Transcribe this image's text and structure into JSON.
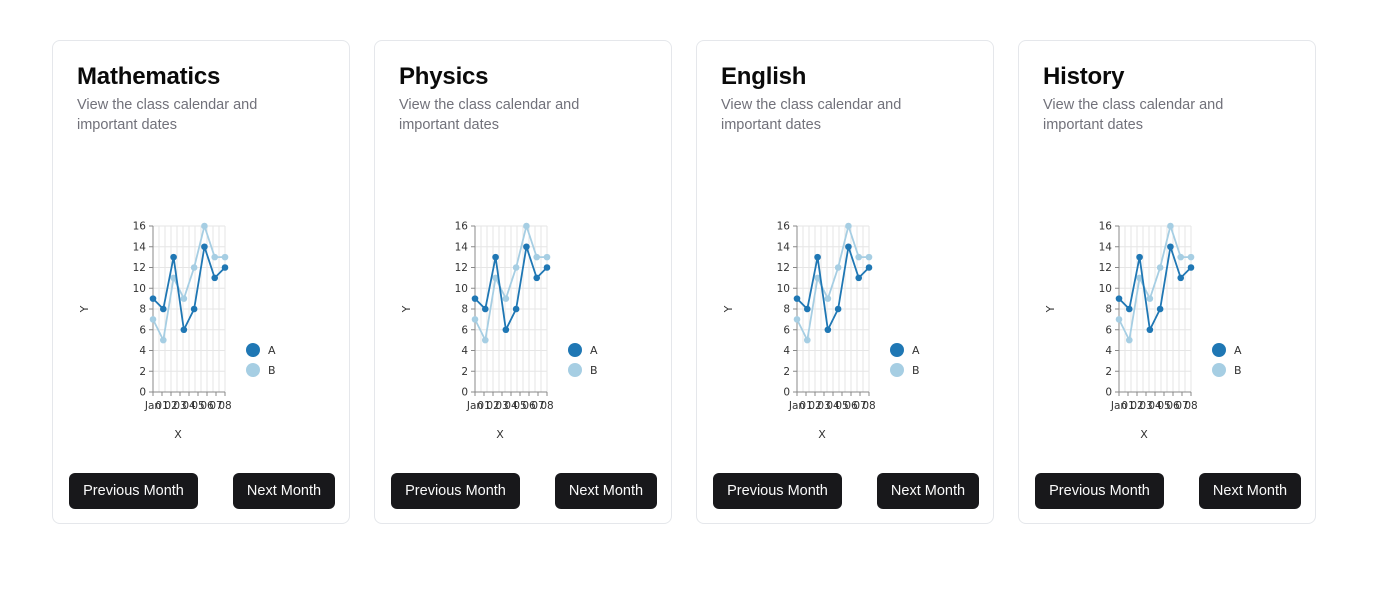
{
  "buttons": {
    "previous": "Previous Month",
    "next": "Next Month"
  },
  "cards": [
    {
      "title": "Mathematics",
      "description": "View the class calendar and important dates"
    },
    {
      "title": "Physics",
      "description": "View the class calendar and important dates"
    },
    {
      "title": "English",
      "description": "View the class calendar and important dates"
    },
    {
      "title": "History",
      "description": "View the class calendar and important dates"
    }
  ],
  "chart_data": {
    "type": "line",
    "xlabel": "X",
    "ylabel": "Y",
    "ylim": [
      0,
      16
    ],
    "y_ticks": [
      0,
      2,
      4,
      6,
      8,
      10,
      12,
      14,
      16
    ],
    "x_tick_labels": [
      "Jan",
      "01",
      "02",
      "03",
      "04",
      "05",
      "06",
      "07",
      "08"
    ],
    "grid": true,
    "legend_position": "right",
    "series": [
      {
        "name": "A",
        "color": "#1f77b4",
        "values": [
          9,
          8,
          13,
          6,
          8,
          14,
          11,
          12
        ]
      },
      {
        "name": "B",
        "color": "#a6cee3",
        "values": [
          7,
          5,
          11,
          9,
          12,
          16,
          13,
          13
        ]
      }
    ]
  }
}
